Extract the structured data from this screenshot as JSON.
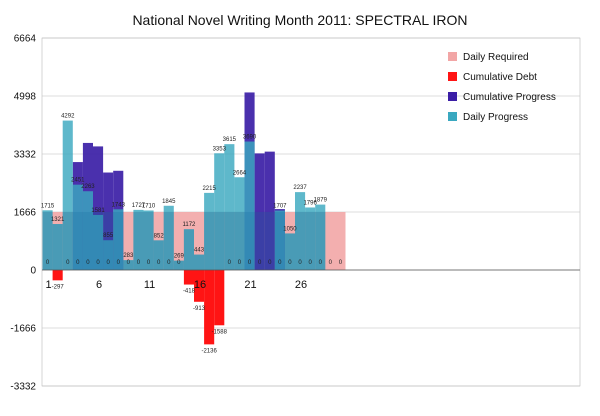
{
  "chart_data": {
    "type": "bar",
    "title": "National Novel Writing Month 2011: SPECTRAL IRON",
    "xlabel": "",
    "ylabel": "",
    "ylim": [
      -3332,
      6664
    ],
    "y_ticks": [
      6664,
      4998,
      3332,
      1666,
      0,
      -1666,
      -3332
    ],
    "x_ticks": [
      1,
      6,
      11,
      16,
      21,
      26
    ],
    "days": [
      1,
      2,
      3,
      4,
      5,
      6,
      7,
      8,
      9,
      10,
      11,
      12,
      13,
      14,
      15,
      16,
      17,
      18,
      19,
      20,
      21,
      22,
      23,
      24,
      25,
      26,
      27,
      28,
      29,
      30
    ],
    "grid": true,
    "legend_position": "top-right",
    "colors": {
      "daily_required": "#f2a6a6",
      "cumulative_debt": "#ff1414",
      "cumulative_progress": "#3b1ea6",
      "daily_progress": "#3aa8c0",
      "overlap": "#1a77a5"
    },
    "series": [
      {
        "name": "Daily Required",
        "values": [
          1667,
          1667,
          1667,
          1667,
          1667,
          1667,
          1667,
          1667,
          1667,
          1667,
          1667,
          1667,
          1667,
          1667,
          1667,
          1667,
          1667,
          1667,
          1667,
          1667,
          1667,
          1667,
          1667,
          1667,
          1667,
          1667,
          1667,
          1667,
          1667,
          1667
        ]
      },
      {
        "name": "Cumulative Debt",
        "values": [
          0,
          -297,
          0,
          0,
          0,
          0,
          0,
          0,
          0,
          0,
          0,
          0,
          0,
          0,
          -418,
          -913,
          -2136,
          -1588,
          0,
          0,
          0,
          0,
          0,
          0,
          0,
          0,
          0,
          0,
          0,
          0
        ],
        "labels": [
          "0",
          "-297",
          "0",
          "0",
          "0",
          "0",
          "0",
          "0",
          "0",
          "0",
          "0",
          "0",
          "0",
          "0",
          "-418",
          "-913",
          "-2136",
          "-1588",
          "0",
          "0",
          "0",
          "0",
          "0",
          "0",
          "0",
          "0",
          "0",
          "0",
          "0",
          "0"
        ]
      },
      {
        "name": "Cumulative Progress",
        "values": [
          0,
          0,
          0,
          3100,
          3650,
          3550,
          2800,
          2850,
          0,
          0,
          0,
          0,
          0,
          0,
          0,
          0,
          0,
          0,
          0,
          0,
          5100,
          3350,
          3400,
          1750,
          0,
          0,
          0,
          0,
          0,
          0
        ],
        "labels": [
          "",
          "",
          "",
          "2451",
          "2263",
          "1581",
          "855",
          "1743",
          "283",
          "",
          "",
          "",
          "",
          "",
          "",
          "",
          "",
          "",
          "",
          "2664",
          "3690",
          "",
          "",
          "",
          "",
          "",
          "1796",
          "1879",
          "",
          ""
        ]
      },
      {
        "name": "Daily Progress",
        "values": [
          1715,
          1321,
          4292,
          2451,
          2263,
          1581,
          855,
          1743,
          283,
          1727,
          1710,
          852,
          1845,
          269,
          1172,
          443,
          2215,
          3353,
          3615,
          2664,
          3690,
          0,
          0,
          1707,
          1050,
          2237,
          1796,
          1879,
          0,
          0
        ],
        "labels": [
          "1715",
          "1321",
          "4292",
          "",
          "",
          "",
          "",
          "",
          "",
          "1727",
          "1710",
          "852",
          "1845",
          "269",
          "1172",
          "443",
          "2215",
          "3353",
          "3615",
          "",
          "",
          "",
          "",
          "1707",
          "1050",
          "2237",
          "",
          "",
          "",
          ""
        ]
      }
    ]
  }
}
